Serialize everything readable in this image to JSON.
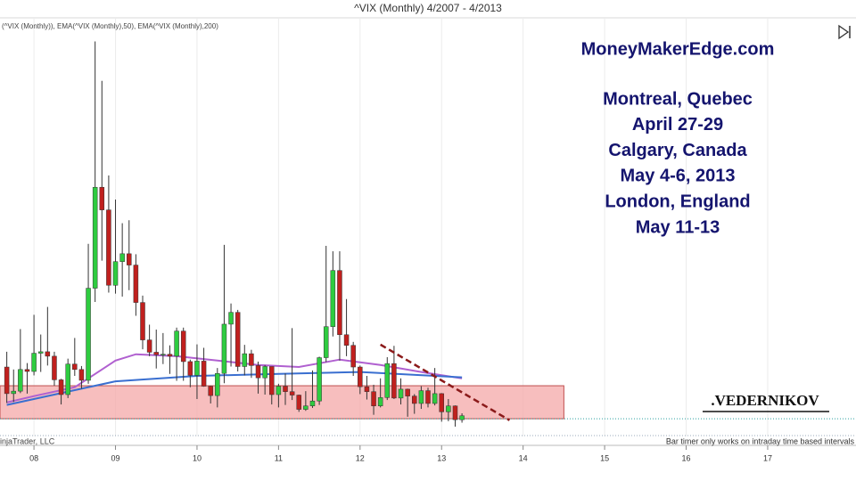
{
  "chart_data": {
    "type": "candlestick",
    "title": "^VIX (Monthly)  4/2007 - 4/2013",
    "indicator_label": "(^VIX (Monthly)), EMA(^VIX (Monthly),50), EMA(^VIX (Monthly),200)",
    "watermark": "MoneyMakerEdge.com",
    "event_lines": [
      "Montreal, Quebec",
      "April 27-29",
      "Calgary, Canada",
      "May 4-6, 2013",
      "London, England",
      "May 11-13"
    ],
    "signature": ".VEDERNIKOV",
    "copyright": "injaTrader, LLC",
    "status_note": "Bar timer only works on intraday time based intervals",
    "up_color": "#2ecc40",
    "down_color": "#c0201e",
    "xlim": [
      "8/2007",
      "2/2018"
    ],
    "ylim": [
      9.3,
      94.3
    ],
    "xticks": [
      {
        "value": "1/2008",
        "label": "08"
      },
      {
        "value": "1/2009",
        "label": "09"
      },
      {
        "value": "1/2010",
        "label": "10"
      },
      {
        "value": "1/2011",
        "label": "11"
      },
      {
        "value": "1/2012",
        "label": "12"
      },
      {
        "value": "1/2013",
        "label": "13"
      },
      {
        "value": "1/2014",
        "label": "14"
      },
      {
        "value": "1/2015",
        "label": "15"
      },
      {
        "value": "1/2016",
        "label": "16"
      },
      {
        "value": "1/2017",
        "label": "17"
      }
    ],
    "grid": true,
    "x": [
      "9/2007",
      "10/2007",
      "11/2007",
      "12/2007",
      "1/2008",
      "2/2008",
      "3/2008",
      "4/2008",
      "5/2008",
      "6/2008",
      "7/2008",
      "8/2008",
      "9/2008",
      "10/2008",
      "11/2008",
      "12/2008",
      "1/2009",
      "2/2009",
      "3/2009",
      "4/2009",
      "5/2009",
      "6/2009",
      "7/2009",
      "8/2009",
      "9/2009",
      "10/2009",
      "11/2009",
      "12/2009",
      "1/2010",
      "2/2010",
      "3/2010",
      "4/2010",
      "5/2010",
      "6/2010",
      "7/2010",
      "8/2010",
      "9/2010",
      "10/2010",
      "11/2010",
      "12/2010",
      "1/2011",
      "2/2011",
      "3/2011",
      "4/2011",
      "5/2011",
      "6/2011",
      "7/2011",
      "8/2011",
      "9/2011",
      "10/2011",
      "11/2011",
      "12/2011",
      "1/2012",
      "2/2012",
      "3/2012",
      "4/2012",
      "5/2012",
      "6/2012",
      "7/2012",
      "8/2012",
      "9/2012",
      "10/2012",
      "11/2012",
      "12/2012",
      "1/2013",
      "2/2013",
      "3/2013",
      "4/2013"
    ],
    "open": [
      23.4,
      18.0,
      18.5,
      22.9,
      22.5,
      26.2,
      26.5,
      25.6,
      20.8,
      17.8,
      24.0,
      22.9,
      20.7,
      39.4,
      59.9,
      55.3,
      40.0,
      44.8,
      46.4,
      44.1,
      36.5,
      28.9,
      26.4,
      25.9,
      26.0,
      25.6,
      30.7,
      24.5,
      21.7,
      24.6,
      19.5,
      17.6,
      22.1,
      32.1,
      34.5,
      23.5,
      26.1,
      23.7,
      21.2,
      23.5,
      17.8,
      19.5,
      18.4,
      17.7,
      14.8,
      15.5,
      16.5,
      25.3,
      31.6,
      43.0,
      29.96,
      27.8,
      23.4,
      19.4,
      18.4,
      15.5,
      17.2,
      24.1,
      17.1,
      18.9,
      17.5,
      16.0,
      18.6,
      16.0,
      18.0,
      14.3,
      15.5,
      12.7
    ],
    "high": [
      26.5,
      22.9,
      31.1,
      24.2,
      34.0,
      30.0,
      35.6,
      26.5,
      21.0,
      25.1,
      29.3,
      23.6,
      48.4,
      89.5,
      81.5,
      62.3,
      57.4,
      52.6,
      53.2,
      46.3,
      37.9,
      32.0,
      31.0,
      30.3,
      27.8,
      31.4,
      31.4,
      24.9,
      28.0,
      27.3,
      19.6,
      23.2,
      48.2,
      36.3,
      35.0,
      27.9,
      26.9,
      24.5,
      23.8,
      23.5,
      20.0,
      22.1,
      31.3,
      17.8,
      18.5,
      22.7,
      25.5,
      48.0,
      46.9,
      46.9,
      37.2,
      28.5,
      23.7,
      21.6,
      19.8,
      21.1,
      25.4,
      27.7,
      21.1,
      19.0,
      17.9,
      19.5,
      19.2,
      23.2,
      18.1,
      16.9,
      15.6,
      14.0
    ],
    "low": [
      16.1,
      16.3,
      18.1,
      18.0,
      21.7,
      22.4,
      23.7,
      19.6,
      15.8,
      17.1,
      21.6,
      19.0,
      20.0,
      36.6,
      45.0,
      38.5,
      38.3,
      37.7,
      39.0,
      33.8,
      27.0,
      25.6,
      23.1,
      24.0,
      22.0,
      20.6,
      20.6,
      19.3,
      16.9,
      19.4,
      16.0,
      15.2,
      20.1,
      23.5,
      22.5,
      21.7,
      21.2,
      18.0,
      17.8,
      15.8,
      15.2,
      15.7,
      16.7,
      14.3,
      14.5,
      15.1,
      15.7,
      24.4,
      29.6,
      24.7,
      25.6,
      21.6,
      17.9,
      16.8,
      13.7,
      15.2,
      16.7,
      16.9,
      15.8,
      13.3,
      13.9,
      14.9,
      15.2,
      15.6,
      12.3,
      12.4,
      11.3,
      12.1
    ],
    "close": [
      18.0,
      18.5,
      22.9,
      22.5,
      26.2,
      26.5,
      25.6,
      20.8,
      17.8,
      24.0,
      22.9,
      20.7,
      39.4,
      59.9,
      55.3,
      40.0,
      44.8,
      46.4,
      44.1,
      36.5,
      28.9,
      26.4,
      25.9,
      26.0,
      25.6,
      30.7,
      24.5,
      21.7,
      24.6,
      19.5,
      17.6,
      22.1,
      32.1,
      34.5,
      23.5,
      26.1,
      23.7,
      21.2,
      23.5,
      17.8,
      19.5,
      18.4,
      17.7,
      14.8,
      15.5,
      16.5,
      25.3,
      31.6,
      43.0,
      29.96,
      27.8,
      23.4,
      19.4,
      18.4,
      15.5,
      17.2,
      24.1,
      17.1,
      18.9,
      17.5,
      16.0,
      18.6,
      16.0,
      18.0,
      14.3,
      15.5,
      12.7,
      13.5
    ],
    "lines": [
      {
        "color": "#b060d0",
        "x": [
          "9/2007",
          "1/2008",
          "7/2008",
          "10/2008",
          "1/2009",
          "4/2009",
          "10/2009",
          "4/2010",
          "10/2010",
          "4/2011",
          "10/2011",
          "4/2012",
          "10/2012",
          "4/2013"
        ],
        "values": [
          16.2,
          17.5,
          19.3,
          22.0,
          24.7,
          26.0,
          25.6,
          24.7,
          23.8,
          23.4,
          24.9,
          23.8,
          22.4,
          21.1
        ]
      },
      {
        "color": "#3a6fd0",
        "x": [
          "9/2007",
          "7/2008",
          "1/2009",
          "1/2010",
          "1/2011",
          "1/2012",
          "4/2013"
        ],
        "values": [
          15.7,
          18.7,
          20.5,
          21.6,
          22.0,
          22.4,
          21.3
        ]
      }
    ],
    "zone": {
      "color": "#f4a8a8",
      "x": [
        "8/2007",
        "7/2014"
      ],
      "y": [
        12.9,
        19.6
      ]
    },
    "trendline": {
      "color": "#8b1a1a",
      "x": [
        "4/2012",
        "11/2013"
      ],
      "y": [
        27.95,
        12.6
      ]
    },
    "price_line": 12.9
  }
}
